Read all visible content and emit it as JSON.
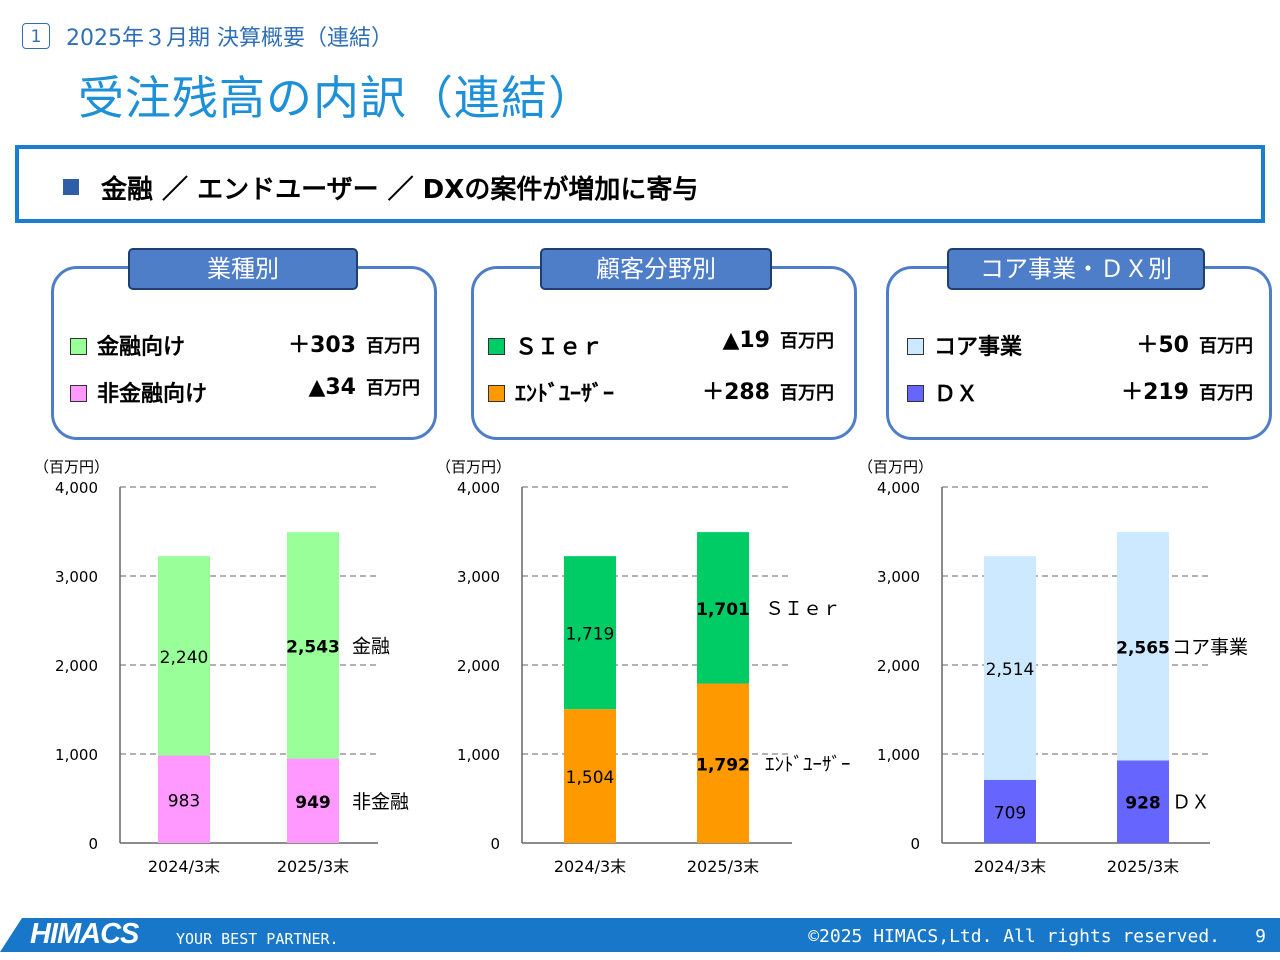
{
  "header": {
    "section_number": "1",
    "section_title": "2025年３月期 決算概要（連結）",
    "page_title": "受注残高の内訳（連結）"
  },
  "banner": {
    "text": "金融 ／ エンドユーザー ／ DXの案件が増加に寄与"
  },
  "colors": {
    "accent": "#1a7fd0",
    "panel_border": "#4f7ec8",
    "finance": "#99ff99",
    "non_finance": "#ff99ff",
    "sier": "#00cc66",
    "end_user": "#ff9900",
    "core": "#cce9ff",
    "dx": "#6666ff",
    "footer": "#1877c8"
  },
  "panels": [
    {
      "tab": "業種別",
      "rows": [
        {
          "label": "金融向け",
          "value": "＋303",
          "unit": "百万円",
          "color": "#99ff99"
        },
        {
          "label": "非金融向け",
          "value": "▲34",
          "unit": "百万円",
          "color": "#ff99ff"
        }
      ]
    },
    {
      "tab": "顧客分野別",
      "rows": [
        {
          "label": "ＳＩｅｒ",
          "value": "▲19",
          "unit": "百万円",
          "color": "#00cc66"
        },
        {
          "label": "ｴﾝﾄﾞﾕｰｻﾞｰ",
          "value": "＋288",
          "unit": "百万円",
          "color": "#ff9900"
        }
      ]
    },
    {
      "tab": "コア事業・ＤＸ別",
      "rows": [
        {
          "label": "コア事業",
          "value": "＋50",
          "unit": "百万円",
          "color": "#cce9ff"
        },
        {
          "label": "ＤＸ",
          "value": "＋219",
          "unit": "百万円",
          "color": "#6666ff"
        }
      ]
    }
  ],
  "chart_data": [
    {
      "type": "bar",
      "stacked": true,
      "unit_label": "（百万円）",
      "categories": [
        "2024/3末",
        "2025/3末"
      ],
      "ylim": [
        0,
        4000
      ],
      "yticks": [
        "0",
        "1,000",
        "2,000",
        "3,000",
        "4,000"
      ],
      "ytick_values": [
        0,
        1000,
        2000,
        3000,
        4000
      ],
      "grid": true,
      "series": [
        {
          "name": "非金融",
          "values": [
            983,
            949
          ],
          "labels": [
            "983",
            "949"
          ],
          "color": "#ff99ff"
        },
        {
          "name": "金融",
          "values": [
            2240,
            2543
          ],
          "labels": [
            "2,240",
            "2,543"
          ],
          "color": "#99ff99"
        }
      ]
    },
    {
      "type": "bar",
      "stacked": true,
      "unit_label": "（百万円）",
      "categories": [
        "2024/3末",
        "2025/3末"
      ],
      "ylim": [
        0,
        4000
      ],
      "yticks": [
        "0",
        "1,000",
        "2,000",
        "3,000",
        "4,000"
      ],
      "ytick_values": [
        0,
        1000,
        2000,
        3000,
        4000
      ],
      "grid": true,
      "series": [
        {
          "name": "ｴﾝﾄﾞﾕｰｻﾞｰ",
          "values": [
            1504,
            1792
          ],
          "labels": [
            "1,504",
            "1,792"
          ],
          "color": "#ff9900"
        },
        {
          "name": "ＳＩｅｒ",
          "values": [
            1719,
            1701
          ],
          "labels": [
            "1,719",
            "1,701"
          ],
          "color": "#00cc66"
        }
      ]
    },
    {
      "type": "bar",
      "stacked": true,
      "unit_label": "（百万円）",
      "categories": [
        "2024/3末",
        "2025/3末"
      ],
      "ylim": [
        0,
        4000
      ],
      "yticks": [
        "0",
        "1,000",
        "2,000",
        "3,000",
        "4,000"
      ],
      "ytick_values": [
        0,
        1000,
        2000,
        3000,
        4000
      ],
      "grid": true,
      "series": [
        {
          "name": "ＤＸ",
          "values": [
            709,
            928
          ],
          "labels": [
            "709",
            "928"
          ],
          "color": "#6666ff"
        },
        {
          "name": "コア事業",
          "values": [
            2514,
            2565
          ],
          "labels": [
            "2,514",
            "2,565"
          ],
          "color": "#cce9ff"
        }
      ]
    }
  ],
  "footer": {
    "logo": "HIMACS",
    "tagline": "YOUR BEST PARTNER.",
    "copyright": "©2025 HIMACS,Ltd. All rights reserved.",
    "page_number": "9"
  }
}
